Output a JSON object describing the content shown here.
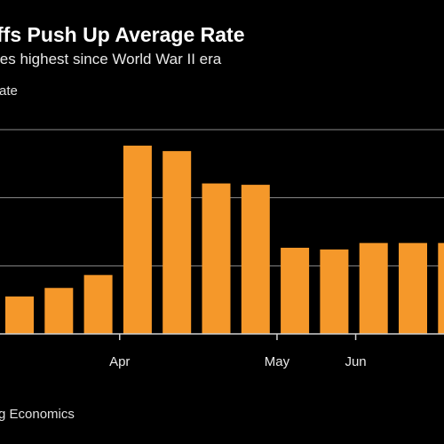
{
  "header": {
    "title": "ffs Push Up Average Rate",
    "subtitle": "ies highest since World War II era",
    "unit": "rate"
  },
  "footer": {
    "source": "rg Economics"
  },
  "colors": {
    "bar": "#f5982a",
    "background": "#000000",
    "gridline": "#8a8a8a",
    "axis": "#cfcfcf"
  },
  "chart_data": {
    "type": "bar",
    "title": "ffs Push Up Average Rate",
    "subtitle": "ies highest since World War II era",
    "ylabel": "rate",
    "grid": true,
    "categories": [
      "",
      "",
      "",
      "",
      "",
      "",
      "",
      "",
      "",
      "",
      "",
      ""
    ],
    "values": [
      1.1,
      1.35,
      1.73,
      5.53,
      5.37,
      4.42,
      4.38,
      2.53,
      2.48,
      2.67,
      2.67,
      2.67
    ],
    "ylim": [
      0,
      6
    ],
    "yticks": [
      0,
      2,
      4,
      6
    ],
    "x_tick_labels": [
      {
        "label": "Apr",
        "after_bar": 2
      },
      {
        "label": "May",
        "after_bar": 6
      },
      {
        "label": "Jun",
        "after_bar": 8
      }
    ]
  }
}
